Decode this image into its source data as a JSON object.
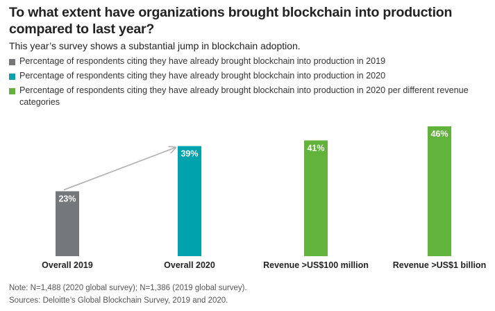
{
  "title": "To what extent have organizations brought blockchain into production compared to last year?",
  "subtitle": "This year’s survey shows a substantial jump in blockchain adoption.",
  "legend": [
    {
      "label": "Percentage of respondents citing they have already brought blockchain into production in 2019",
      "color": "#75787b"
    },
    {
      "label": "Percentage of respondents citing they have already brought blockchain into production in 2020",
      "color": "#00a3ad"
    },
    {
      "label": "Percentage of respondents citing they have already brought blockchain into production in 2020 per different revenue categories",
      "color": "#62b33c"
    }
  ],
  "chart_data": {
    "type": "bar",
    "categories": [
      "Overall 2019",
      "Overall 2020",
      "Revenue >US$100 million",
      "Revenue >US$1 billion"
    ],
    "values": [
      23,
      39,
      41,
      46
    ],
    "value_labels": [
      "23%",
      "39%",
      "41%",
      "46%"
    ],
    "colors": [
      "#75787b",
      "#00a3ad",
      "#62b33c",
      "#62b33c"
    ],
    "value_label_color": "#ffffff",
    "arrow": {
      "from": "Overall 2019",
      "to": "Overall 2020",
      "color": "#b5b5b5"
    },
    "grid": false,
    "title": "To what extent have organizations brought blockchain into production compared to last year?",
    "xlabel": "",
    "ylabel": "",
    "ylim": [
      0,
      46
    ]
  },
  "footer": {
    "note": "Note: N=1,488 (2020 global survey); N=1,386 (2019 global survey).",
    "source": "Sources: Deloitte’s Global Blockchain Survey, 2019 and 2020."
  }
}
